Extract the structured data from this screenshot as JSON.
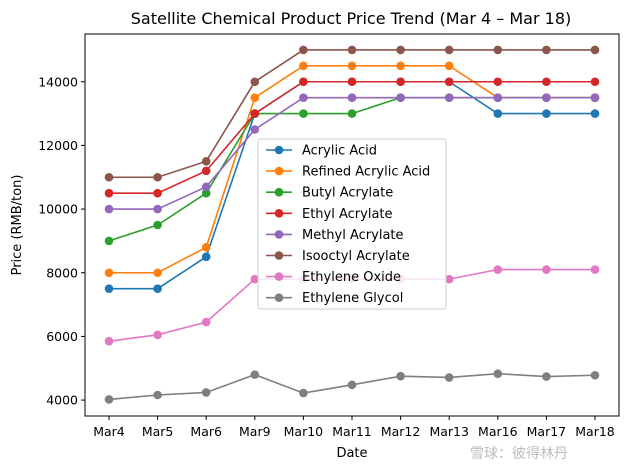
{
  "chart_data": {
    "type": "line",
    "title": "Satellite Chemical Product Price Trend (Mar 4 – Mar 18)",
    "xlabel": "Date",
    "ylabel": "Price (RMB/ton)",
    "categories": [
      "Mar4",
      "Mar5",
      "Mar6",
      "Mar9",
      "Mar10",
      "Mar11",
      "Mar12",
      "Mar13",
      "Mar16",
      "Mar17",
      "Mar18"
    ],
    "ylim": [
      3500,
      15500
    ],
    "yticks": [
      4000,
      6000,
      8000,
      10000,
      12000,
      14000
    ],
    "grid": false,
    "legend_position": "center",
    "series": [
      {
        "name": "Acrylic Acid",
        "color": "#1f77b4",
        "values": [
          7500,
          7500,
          8500,
          13000,
          14000,
          14000,
          14000,
          14000,
          13000,
          13000,
          13000
        ]
      },
      {
        "name": "Refined Acrylic Acid",
        "color": "#ff7f0e",
        "values": [
          8000,
          8000,
          8800,
          13500,
          14500,
          14500,
          14500,
          14500,
          13500,
          13500,
          13500
        ]
      },
      {
        "name": "Butyl Acrylate",
        "color": "#2ca02c",
        "values": [
          9000,
          9500,
          10500,
          13000,
          13000,
          13000,
          13500,
          13500,
          13500,
          13500,
          13500
        ]
      },
      {
        "name": "Ethyl Acrylate",
        "color": "#d62728",
        "values": [
          10500,
          10500,
          11200,
          13000,
          14000,
          14000,
          14000,
          14000,
          14000,
          14000,
          14000
        ]
      },
      {
        "name": "Methyl Acrylate",
        "color": "#9467bd",
        "values": [
          10000,
          10000,
          10700,
          12500,
          13500,
          13500,
          13500,
          13500,
          13500,
          13500,
          13500
        ]
      },
      {
        "name": "Isooctyl Acrylate",
        "color": "#8c564b",
        "values": [
          11000,
          11000,
          11500,
          14000,
          15000,
          15000,
          15000,
          15000,
          15000,
          15000,
          15000
        ]
      },
      {
        "name": "Ethylene Oxide",
        "color": "#e377c2",
        "values": [
          5850,
          6050,
          6450,
          7800,
          7800,
          7800,
          7800,
          7800,
          8100,
          8100,
          8100
        ]
      },
      {
        "name": "Ethylene Glycol",
        "color": "#7f7f7f",
        "values": [
          4020,
          4160,
          4240,
          4800,
          4220,
          4480,
          4750,
          4710,
          4830,
          4740,
          4780
        ]
      }
    ]
  },
  "watermark": {
    "text": "雪球：彼得林丹"
  }
}
